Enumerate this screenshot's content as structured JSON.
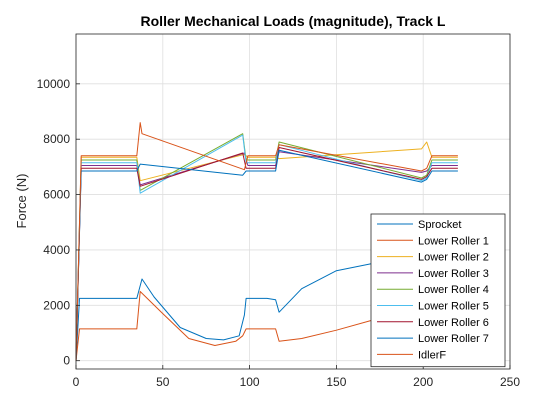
{
  "chart_data": {
    "type": "line",
    "title": "Roller Mechanical Loads (magnitude), Track L",
    "xlabel": "",
    "ylabel": "Force (N)",
    "xlim": [
      0,
      250
    ],
    "ylim": [
      -300,
      11800
    ],
    "xticks": [
      0,
      50,
      100,
      150,
      200,
      250
    ],
    "yticks": [
      0,
      2000,
      4000,
      6000,
      8000,
      10000
    ],
    "grid": true,
    "legend_position": "bottom-right",
    "series": [
      {
        "name": "Sprocket",
        "color": "#0072BD",
        "x": [
          0,
          2,
          4,
          35,
          38,
          45,
          60,
          75,
          85,
          94,
          97,
          98,
          100,
          110,
          115,
          117,
          130,
          150,
          170,
          190,
          200,
          210,
          220
        ],
        "y": [
          0,
          2250,
          2250,
          2250,
          2950,
          2300,
          1200,
          800,
          750,
          900,
          1650,
          2250,
          2250,
          2250,
          2200,
          1750,
          2600,
          3250,
          3500,
          3550,
          3550,
          3550,
          3550
        ]
      },
      {
        "name": "Lower Roller 1",
        "color": "#D95319",
        "x": [
          0,
          2,
          4,
          35,
          37,
          50,
          65,
          80,
          92,
          96,
          98,
          100,
          115,
          117,
          130,
          150,
          170,
          190,
          200,
          210,
          220
        ],
        "y": [
          0,
          1150,
          1150,
          1150,
          2500,
          1700,
          800,
          550,
          700,
          900,
          1150,
          1150,
          1150,
          700,
          800,
          1100,
          1450,
          1800,
          1950,
          2050,
          2100
        ]
      },
      {
        "name": "Lower Roller 2",
        "color": "#EDB120",
        "x": [
          0,
          3,
          35,
          37,
          97,
          99,
          115,
          117,
          199,
          202,
          205,
          220
        ],
        "y": [
          0,
          7350,
          7350,
          6500,
          7450,
          7350,
          7350,
          7300,
          7650,
          7900,
          7350,
          7350
        ]
      },
      {
        "name": "Lower Roller 3",
        "color": "#7E2F8E",
        "x": [
          0,
          3,
          35,
          37,
          97,
          99,
          115,
          117,
          199,
          202,
          205,
          220
        ],
        "y": [
          0,
          7050,
          7050,
          6350,
          7500,
          7050,
          7050,
          7550,
          6800,
          6850,
          7050,
          7050
        ]
      },
      {
        "name": "Lower Roller 4",
        "color": "#77AC30",
        "x": [
          0,
          3,
          35,
          37,
          96,
          98,
          115,
          117,
          199,
          202,
          205,
          220
        ],
        "y": [
          0,
          7250,
          7250,
          6150,
          8200,
          7250,
          7250,
          7900,
          6600,
          6700,
          7250,
          7250
        ]
      },
      {
        "name": "Lower Roller 5",
        "color": "#4DBEEE",
        "x": [
          0,
          3,
          35,
          37,
          96,
          98,
          115,
          117,
          199,
          202,
          205,
          220
        ],
        "y": [
          0,
          7150,
          7150,
          6050,
          8150,
          7150,
          7150,
          7800,
          6500,
          6600,
          7150,
          7150
        ]
      },
      {
        "name": "Lower Roller 6",
        "color": "#A2142F",
        "x": [
          0,
          3,
          35,
          37,
          96,
          98,
          115,
          117,
          199,
          202,
          205,
          220
        ],
        "y": [
          0,
          6950,
          6950,
          6300,
          7500,
          6950,
          6950,
          7700,
          6550,
          6650,
          6950,
          6950
        ]
      },
      {
        "name": "Lower Roller 7",
        "color": "#0072BD",
        "x": [
          0,
          3,
          35,
          37,
          96,
          98,
          115,
          117,
          199,
          202,
          205,
          220
        ],
        "y": [
          0,
          6850,
          6850,
          7100,
          6700,
          6850,
          6850,
          7600,
          6450,
          6550,
          6850,
          6850
        ]
      },
      {
        "name": "IdlerF",
        "color": "#D95319",
        "x": [
          0,
          3,
          35,
          37,
          38,
          97,
          99,
          115,
          117,
          199,
          202,
          205,
          220
        ],
        "y": [
          0,
          7400,
          7400,
          8600,
          8200,
          6900,
          7400,
          7400,
          7800,
          6850,
          6950,
          7400,
          7400
        ]
      }
    ]
  }
}
